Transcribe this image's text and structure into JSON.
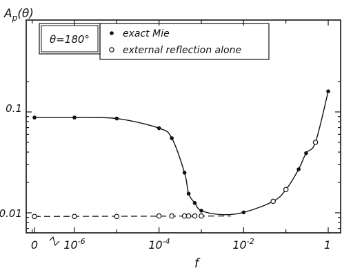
{
  "chart_data": {
    "type": "scatter",
    "ylabel": "A_p(θ)",
    "ylabel_main": "A",
    "ylabel_sub": "p",
    "ylabel_arg": "(θ)",
    "xlabel": "f",
    "annotation": "θ=180°",
    "legend": {
      "placement": "top",
      "entries": [
        "exact Mie",
        "external reflection alone"
      ]
    },
    "yscale": "log",
    "ylim": [
      0.0055,
      0.28
    ],
    "xscale": "log10 with broken axis at 0",
    "xlim_exponent": [
      -7,
      0
    ],
    "x_ticks": [
      {
        "label": "0",
        "exponent": null
      },
      {
        "label": "10",
        "exponent": -6,
        "sup": "-6"
      },
      {
        "label": "10",
        "exponent": -4,
        "sup": "-4"
      },
      {
        "label": "10",
        "exponent": -2,
        "sup": "-2"
      },
      {
        "label": "1",
        "exponent": 0,
        "sup": ""
      }
    ],
    "y_ticks": [
      {
        "label": "0.1",
        "value": 0.1
      },
      {
        "label": "0.01",
        "value": 0.01
      }
    ],
    "grid": false,
    "series": [
      {
        "name": "exact Mie",
        "marker": "filled-circle",
        "line": "solid",
        "points": [
          {
            "x": 0,
            "y": 0.088
          },
          {
            "x": 1e-06,
            "y": 0.088
          },
          {
            "x": 1e-05,
            "y": 0.086
          },
          {
            "x": 0.0001,
            "y": 0.069
          },
          {
            "x": 0.0002,
            "y": 0.055
          },
          {
            "x": 0.0004,
            "y": 0.025
          },
          {
            "x": 0.0005,
            "y": 0.0155
          },
          {
            "x": 0.0007,
            "y": 0.0125
          },
          {
            "x": 0.001,
            "y": 0.0105
          },
          {
            "x": 0.01,
            "y": 0.0101
          },
          {
            "x": 0.05,
            "y": 0.013
          },
          {
            "x": 0.1,
            "y": 0.017
          },
          {
            "x": 0.2,
            "y": 0.027
          },
          {
            "x": 0.3,
            "y": 0.039
          },
          {
            "x": 0.5,
            "y": 0.05
          },
          {
            "x": 1,
            "y": 0.16
          }
        ]
      },
      {
        "name": "external reflection alone",
        "marker": "open-circle",
        "line": "dashed",
        "points": [
          {
            "x": 0,
            "y": 0.0092
          },
          {
            "x": 1e-06,
            "y": 0.0092
          },
          {
            "x": 1e-05,
            "y": 0.0092
          },
          {
            "x": 0.0001,
            "y": 0.0093
          },
          {
            "x": 0.0002,
            "y": 0.0093
          },
          {
            "x": 0.0004,
            "y": 0.0093
          },
          {
            "x": 0.0005,
            "y": 0.0093
          },
          {
            "x": 0.0007,
            "y": 0.0093
          },
          {
            "x": 0.001,
            "y": 0.0093
          },
          {
            "x": 0.05,
            "y": 0.013
          },
          {
            "x": 0.1,
            "y": 0.017
          },
          {
            "x": 0.5,
            "y": 0.05
          }
        ]
      }
    ]
  }
}
